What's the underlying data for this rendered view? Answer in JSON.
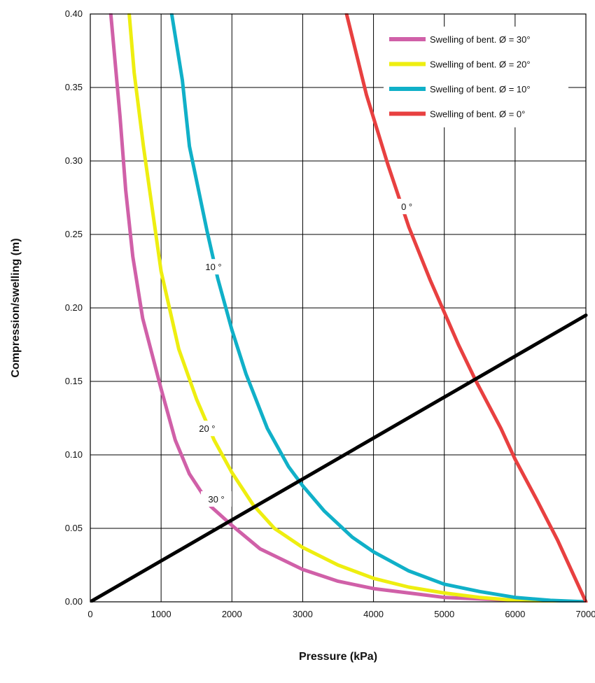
{
  "chart_data": {
    "type": "line",
    "xlabel": "Pressure (kPa)",
    "ylabel": "Compression/swelling (m)",
    "xlim": [
      0,
      7000
    ],
    "ylim": [
      0,
      0.4
    ],
    "x_ticks": [
      0,
      1000,
      2000,
      3000,
      4000,
      5000,
      6000,
      7000
    ],
    "y_ticks": [
      0.0,
      0.05,
      0.1,
      0.15,
      0.2,
      0.25,
      0.3,
      0.35,
      0.4
    ],
    "x_tick_labels": [
      "0",
      "1000",
      "2000",
      "3000",
      "4000",
      "5000",
      "6000",
      "7000"
    ],
    "y_tick_labels": [
      "0.00",
      "0.05",
      "0.10",
      "0.15",
      "0.20",
      "0.25",
      "0.30",
      "0.35",
      "0.40"
    ],
    "grid": true,
    "legend_position": "top-right",
    "series": [
      {
        "name": "Swelling of bent. Ø = 30°",
        "color": "#d060a8",
        "curve_label": "30 °",
        "label_at": [
          1780,
          0.07
        ],
        "points": [
          [
            290,
            0.4
          ],
          [
            420,
            0.33
          ],
          [
            500,
            0.28
          ],
          [
            600,
            0.235
          ],
          [
            740,
            0.193
          ],
          [
            1000,
            0.145
          ],
          [
            1200,
            0.11
          ],
          [
            1400,
            0.087
          ],
          [
            1700,
            0.065
          ],
          [
            2000,
            0.052
          ],
          [
            2400,
            0.036
          ],
          [
            3000,
            0.022
          ],
          [
            3500,
            0.014
          ],
          [
            4000,
            0.009
          ],
          [
            4500,
            0.006
          ],
          [
            5000,
            0.003
          ],
          [
            6000,
            0.001
          ],
          [
            7000,
            0.0
          ]
        ]
      },
      {
        "name": "Swelling of bent. Ø = 20°",
        "color": "#eeee10",
        "curve_label": "20 °",
        "label_at": [
          1650,
          0.118
        ],
        "points": [
          [
            550,
            0.4
          ],
          [
            620,
            0.36
          ],
          [
            750,
            0.31
          ],
          [
            1000,
            0.225
          ],
          [
            1250,
            0.172
          ],
          [
            1500,
            0.138
          ],
          [
            1750,
            0.11
          ],
          [
            2000,
            0.088
          ],
          [
            2300,
            0.066
          ],
          [
            2600,
            0.05
          ],
          [
            3000,
            0.037
          ],
          [
            3500,
            0.025
          ],
          [
            4000,
            0.016
          ],
          [
            4500,
            0.01
          ],
          [
            5000,
            0.006
          ],
          [
            5500,
            0.003
          ],
          [
            6000,
            0.001
          ],
          [
            7000,
            0.0
          ]
        ]
      },
      {
        "name": "Swelling of bent. Ø = 10°",
        "color": "#10b0c8",
        "curve_label": "10 °",
        "label_at": [
          1740,
          0.228
        ],
        "points": [
          [
            1150,
            0.4
          ],
          [
            1300,
            0.355
          ],
          [
            1400,
            0.31
          ],
          [
            1650,
            0.252
          ],
          [
            1800,
            0.22
          ],
          [
            2000,
            0.185
          ],
          [
            2200,
            0.155
          ],
          [
            2500,
            0.118
          ],
          [
            2800,
            0.092
          ],
          [
            3000,
            0.079
          ],
          [
            3300,
            0.062
          ],
          [
            3700,
            0.044
          ],
          [
            4000,
            0.034
          ],
          [
            4500,
            0.021
          ],
          [
            5000,
            0.012
          ],
          [
            5500,
            0.007
          ],
          [
            6000,
            0.003
          ],
          [
            6500,
            0.001
          ],
          [
            7000,
            0.0
          ]
        ]
      },
      {
        "name": "Swelling of bent. Ø = 0°",
        "color": "#e84040",
        "curve_label": "0 °",
        "label_at": [
          4470,
          0.269
        ],
        "points": [
          [
            3620,
            0.4
          ],
          [
            3900,
            0.345
          ],
          [
            4200,
            0.298
          ],
          [
            4500,
            0.255
          ],
          [
            4800,
            0.219
          ],
          [
            5000,
            0.197
          ],
          [
            5200,
            0.175
          ],
          [
            5450,
            0.15
          ],
          [
            5800,
            0.118
          ],
          [
            6000,
            0.097
          ],
          [
            6300,
            0.07
          ],
          [
            6600,
            0.042
          ],
          [
            7000,
            0.0
          ]
        ]
      },
      {
        "color": "#000000",
        "points": [
          [
            0,
            0.0
          ],
          [
            7000,
            0.195
          ]
        ]
      }
    ]
  }
}
